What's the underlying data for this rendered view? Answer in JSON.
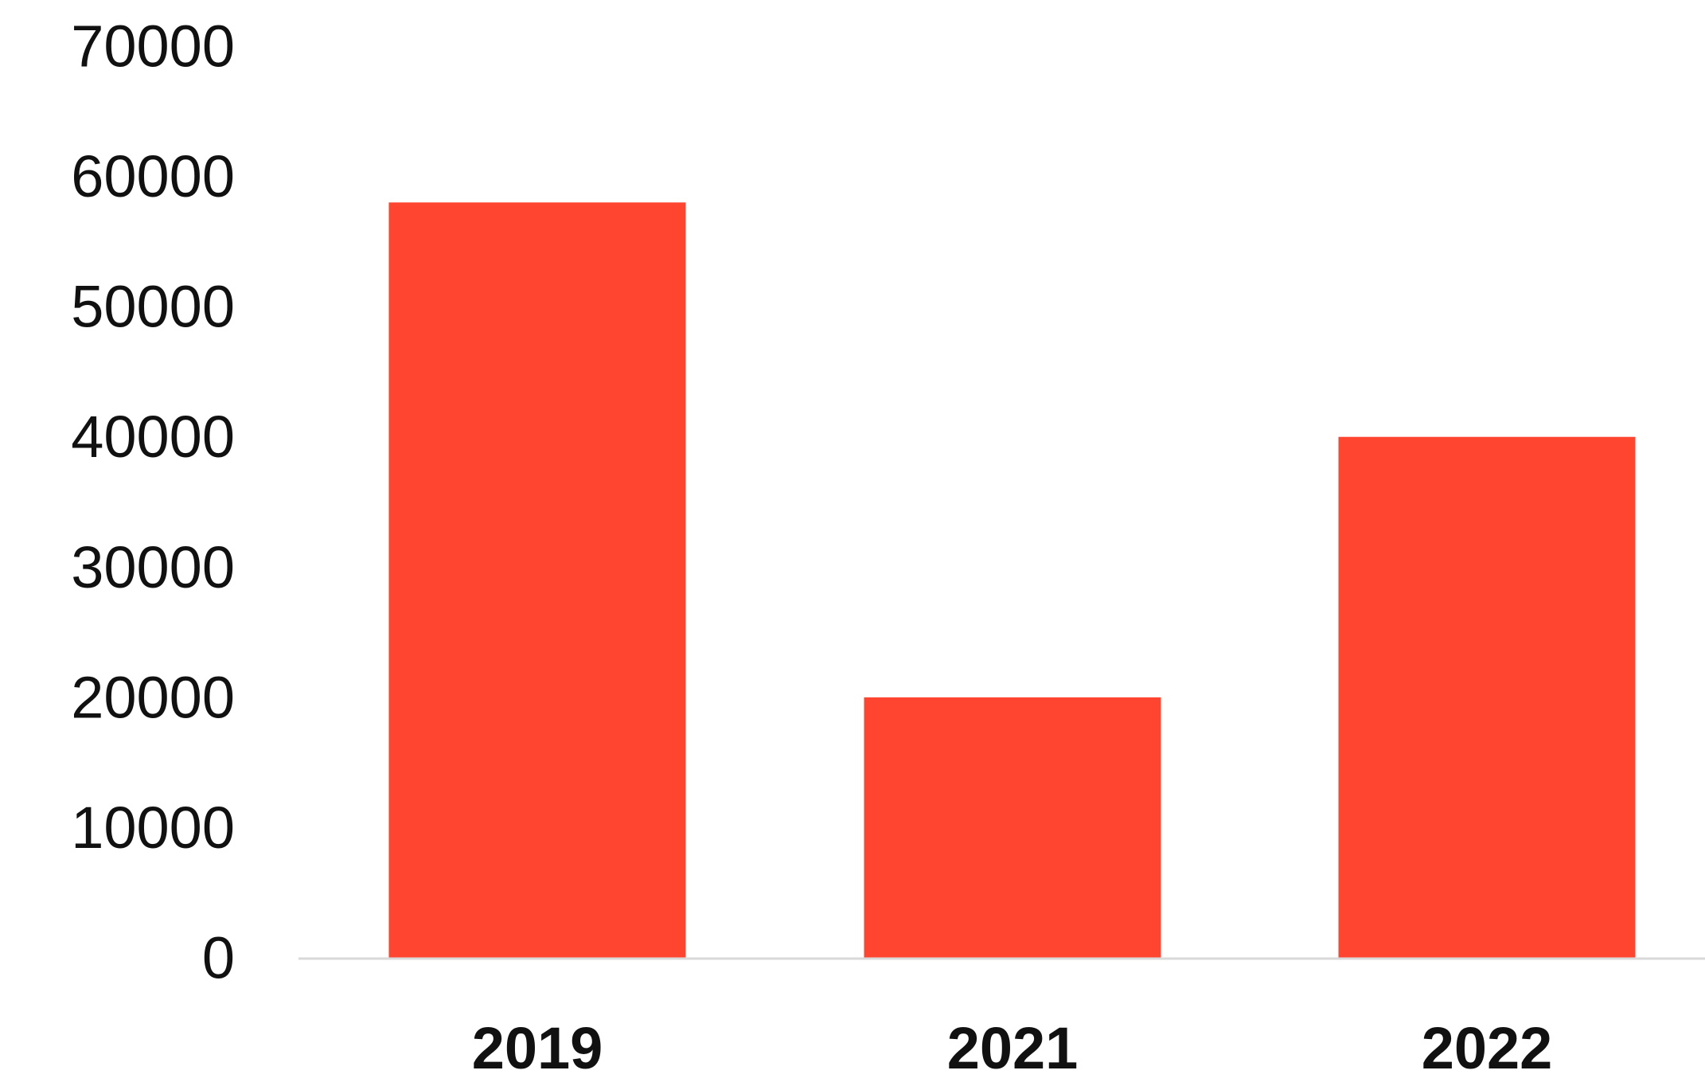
{
  "chart_data": {
    "type": "bar",
    "title": "",
    "xlabel": "",
    "ylabel": "",
    "categories": [
      "2019",
      "2021",
      "2022"
    ],
    "values": [
      58000,
      20000,
      40000
    ],
    "ylim": [
      0,
      70000
    ],
    "yticks": [
      0,
      10000,
      20000,
      30000,
      40000,
      50000,
      60000,
      70000
    ],
    "ytick_labels": [
      "0",
      "10000",
      "20000",
      "30000",
      "40000",
      "50000",
      "60000",
      "70000"
    ],
    "grid": false,
    "legend": "none",
    "bar_color": "#ff4530",
    "baseline_color": "#d9d9d9"
  }
}
